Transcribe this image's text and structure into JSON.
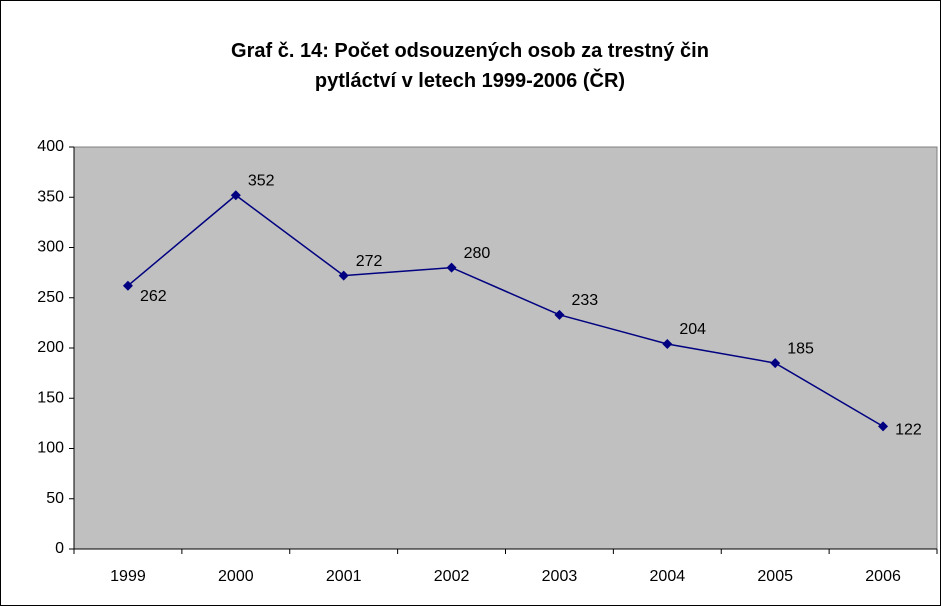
{
  "chart_data": {
    "type": "line",
    "title": "Graf č. 14: Počet odsouzených osob za trestný čin pytláctví v letech 1999-2006 (ČR)",
    "categories": [
      "1999",
      "2000",
      "2001",
      "2002",
      "2003",
      "2004",
      "2005",
      "2006"
    ],
    "series": [
      {
        "color": "#000080",
        "values": [
          262,
          352,
          272,
          280,
          233,
          204,
          185,
          122
        ]
      }
    ],
    "ylim": [
      0,
      400
    ],
    "yticks": [
      0,
      50,
      100,
      150,
      200,
      250,
      300,
      350,
      400
    ],
    "plot_background": "#c0c0c0"
  }
}
